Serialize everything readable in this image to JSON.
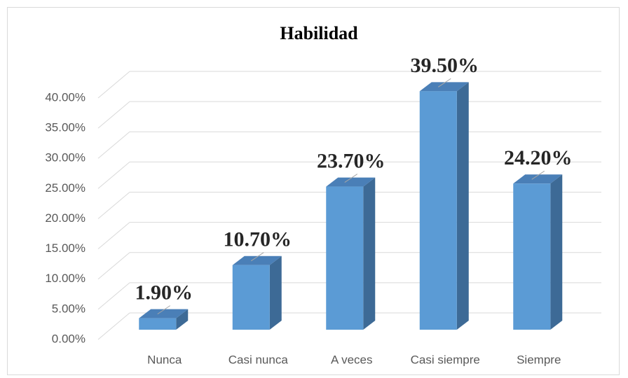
{
  "chart_data": {
    "type": "bar3d",
    "title": "Habilidad",
    "categories": [
      "Nunca",
      "Casi nunca",
      "A veces",
      "Casi siempre",
      "Siempre"
    ],
    "values": [
      1.9,
      10.7,
      23.7,
      39.5,
      24.2
    ],
    "value_labels": [
      "1.90%",
      "10.70%",
      "23.70%",
      "39.50%",
      "24.20%"
    ],
    "color": "#5b9bd5",
    "ylim": [
      0,
      40
    ],
    "yticks": [
      {
        "value": 0,
        "label": "0.00%"
      },
      {
        "value": 5,
        "label": "5.00%"
      },
      {
        "value": 10,
        "label": "10.00%"
      },
      {
        "value": 15,
        "label": "15.00%"
      },
      {
        "value": 20,
        "label": "20.00%"
      },
      {
        "value": 25,
        "label": "25.00%"
      },
      {
        "value": 30,
        "label": "30.00%"
      },
      {
        "value": 35,
        "label": "35.00%"
      },
      {
        "value": 40,
        "label": "40.00%"
      }
    ],
    "grid": true
  }
}
